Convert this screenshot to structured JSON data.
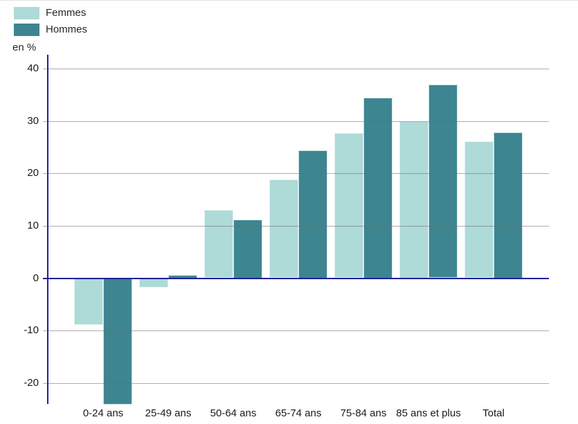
{
  "legend": {
    "items": [
      {
        "label": "Femmes",
        "color": "#aedad8"
      },
      {
        "label": "Hommes",
        "color": "#3d8591"
      }
    ]
  },
  "unit_label": "en %",
  "chart_data": {
    "type": "bar",
    "title": "",
    "xlabel": "",
    "ylabel": "en %",
    "ylim": [
      -24,
      40
    ],
    "yticks": [
      40,
      30,
      20,
      10,
      0,
      -10,
      -20
    ],
    "grid": true,
    "grid_over_bars": true,
    "legend_position": "top-left",
    "categories": [
      "0-24 ans",
      "25-49 ans",
      "50-64 ans",
      "65-74 ans",
      "75-84 ans",
      "85 ans et plus",
      "Total"
    ],
    "series": [
      {
        "name": "Femmes",
        "color": "#aedad8",
        "values": [
          -8.9,
          -1.7,
          13.0,
          18.8,
          27.7,
          30.0,
          26.1
        ]
      },
      {
        "name": "Hommes",
        "color": "#3d8591",
        "values": [
          -24.0,
          0.6,
          11.2,
          24.4,
          34.5,
          36.9,
          27.9
        ]
      }
    ],
    "axis_color": "#1f1f99",
    "grid_color": "#9b9b9b",
    "text_color": "#1a1a1a"
  }
}
